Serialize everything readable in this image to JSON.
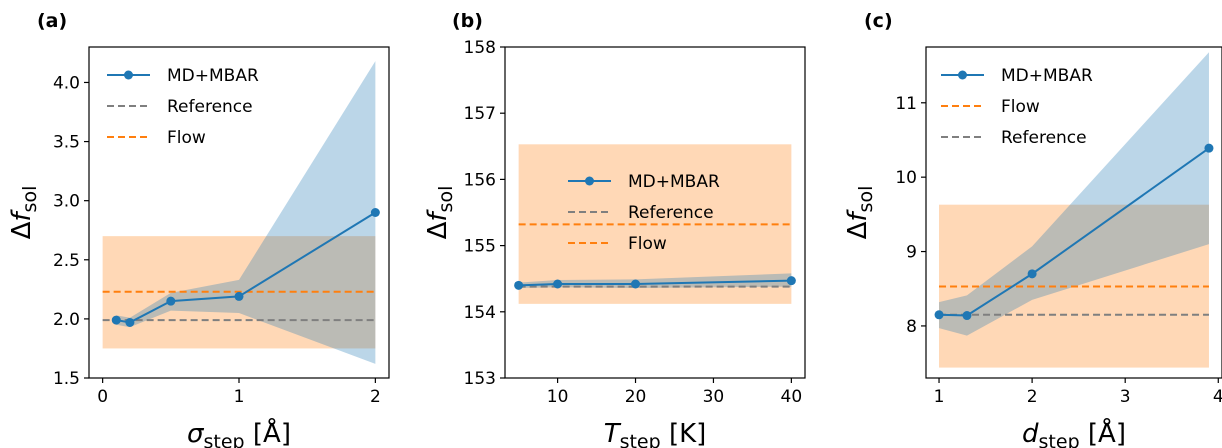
{
  "colors": {
    "md": "#1f77b4",
    "md_band": "#a6c8e6",
    "flow": "#ff7f0e",
    "flow_band": "#ffd2ab",
    "reference": "#7f7f7f"
  },
  "chart_data": [
    {
      "type": "line",
      "panel_label": "(a)",
      "xlabel": {
        "prefix": "",
        "symbol": "σ",
        "sub": "step",
        "unit": "[Å]"
      },
      "ylabel": {
        "prefix": "Δ",
        "symbol": "f",
        "sub": "sol"
      },
      "xlim": [
        -0.1,
        2.1
      ],
      "ylim": [
        1.5,
        4.3
      ],
      "xticks": [
        0,
        1,
        2
      ],
      "yticks": [
        1.5,
        2.0,
        2.5,
        3.0,
        3.5,
        4.0
      ],
      "ytick_decimals": 1,
      "legend_position": "top-left",
      "legend_order": [
        "md",
        "reference",
        "flow"
      ],
      "legend_labels": {
        "md": "MD+MBAR",
        "reference": "Reference",
        "flow": "Flow"
      },
      "series": {
        "md": {
          "x": [
            0.1,
            0.2,
            0.5,
            1.0,
            2.0
          ],
          "y": [
            1.99,
            1.97,
            2.15,
            2.19,
            2.9
          ],
          "band_low": [
            1.95,
            1.93,
            2.07,
            2.05,
            1.62
          ],
          "band_high": [
            2.03,
            2.01,
            2.22,
            2.33,
            4.18
          ]
        },
        "reference": {
          "x": [
            0,
            2
          ],
          "y": 1.99
        },
        "flow": {
          "x": [
            0,
            2
          ],
          "y": 2.23,
          "band": [
            1.75,
            2.7
          ]
        }
      }
    },
    {
      "type": "line",
      "panel_label": "(b)",
      "xlabel": {
        "prefix": "",
        "symbol": "T",
        "sub": "step",
        "unit": "[K]"
      },
      "ylabel": {
        "prefix": "Δ",
        "symbol": "f",
        "sub": "sol"
      },
      "xlim": [
        3.25,
        41.75
      ],
      "ylim": [
        153,
        158
      ],
      "xticks": [
        10,
        20,
        30,
        40
      ],
      "yticks": [
        153,
        154,
        155,
        156,
        157,
        158
      ],
      "ytick_decimals": 0,
      "legend_position": "center",
      "legend_order": [
        "md",
        "reference",
        "flow"
      ],
      "legend_labels": {
        "md": "MD+MBAR",
        "reference": "Reference",
        "flow": "Flow"
      },
      "series": {
        "md": {
          "x": [
            5,
            10,
            20,
            40
          ],
          "y": [
            154.4,
            154.42,
            154.42,
            154.47
          ],
          "band_low": [
            154.36,
            154.37,
            154.36,
            154.38
          ],
          "band_high": [
            154.44,
            154.48,
            154.49,
            154.58
          ]
        },
        "reference": {
          "x": [
            5,
            40
          ],
          "y": 154.38
        },
        "flow": {
          "x": [
            5,
            40
          ],
          "y": 155.32,
          "band": [
            154.12,
            156.53
          ]
        }
      }
    },
    {
      "type": "line",
      "panel_label": "(c)",
      "xlabel": {
        "prefix": "",
        "symbol": "d",
        "sub": "step",
        "unit": "[Å]"
      },
      "ylabel": {
        "prefix": "Δ",
        "symbol": "f",
        "sub": "sol"
      },
      "xlim": [
        0.86,
        4.04
      ],
      "ylim": [
        7.3,
        11.75
      ],
      "xticks": [
        1,
        2,
        3,
        4
      ],
      "yticks": [
        8,
        9,
        10,
        11
      ],
      "ytick_decimals": 0,
      "legend_position": "top-left",
      "legend_order": [
        "md",
        "flow",
        "reference"
      ],
      "legend_labels": {
        "md": "MD+MBAR",
        "reference": "Reference",
        "flow": "Flow"
      },
      "series": {
        "md": {
          "x": [
            1.0,
            1.3,
            2.0,
            3.9
          ],
          "y": [
            8.15,
            8.14,
            8.7,
            10.39
          ],
          "band_low": [
            7.97,
            7.87,
            8.35,
            9.1
          ],
          "band_high": [
            8.32,
            8.41,
            9.07,
            11.68
          ]
        },
        "reference": {
          "x": [
            1.0,
            3.9
          ],
          "y": 8.15
        },
        "flow": {
          "x": [
            1.0,
            3.9
          ],
          "y": 8.53,
          "band": [
            7.44,
            9.63
          ]
        }
      }
    }
  ]
}
